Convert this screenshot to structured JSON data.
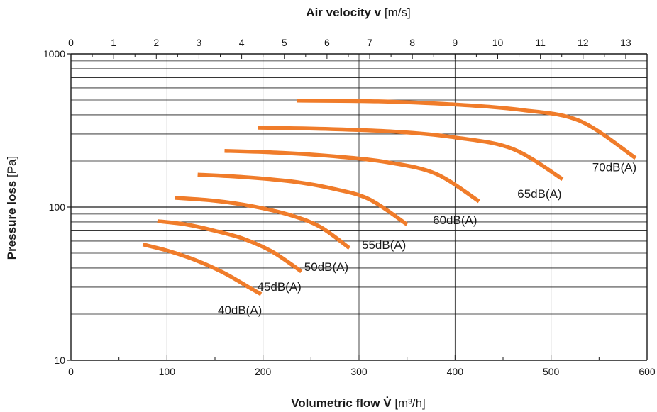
{
  "chart_data": {
    "type": "line",
    "x_axis": {
      "title_bold": "Volumetric flow V̇",
      "title_unit": "[m³/h]",
      "range": [
        0,
        600
      ],
      "ticks": [
        0,
        100,
        200,
        300,
        400,
        500,
        600
      ],
      "tick_labels": [
        "0",
        "100",
        "200",
        "300",
        "400",
        "500",
        "600"
      ],
      "minor_step": 50
    },
    "x2_axis": {
      "title_bold": "Air velocity v",
      "title_unit": "[m/s]",
      "range": [
        0,
        13.5
      ],
      "ticks": [
        0,
        1,
        2,
        3,
        4,
        5,
        6,
        7,
        8,
        9,
        10,
        11,
        12,
        13
      ],
      "tick_labels": [
        "0",
        "1",
        "2",
        "3",
        "4",
        "5",
        "6",
        "7",
        "8",
        "9",
        "10",
        "11",
        "12",
        "13"
      ],
      "minor_step": 0.5
    },
    "y_axis": {
      "title_bold": "Pressure loss",
      "title_unit": "[Pa]",
      "scale": "log",
      "range": [
        10,
        1000
      ],
      "ticks": [
        10,
        100,
        1000
      ],
      "tick_labels": [
        "10",
        "100",
        "1000"
      ]
    },
    "grid": true,
    "series_color": "#f07c2a",
    "series": [
      {
        "name": "40dB(A)",
        "label_anchor": [
          202,
          24
        ],
        "x": [
          75,
          100,
          130,
          160,
          185,
          198
        ],
        "y": [
          57,
          52,
          45,
          37,
          30,
          27
        ]
      },
      {
        "name": "45dB(A)",
        "label_anchor": [
          243,
          34
        ],
        "x": [
          90,
          120,
          150,
          180,
          210,
          240
        ],
        "y": [
          81,
          77,
          70,
          62,
          51,
          38
        ]
      },
      {
        "name": "50dB(A)",
        "label_anchor": [
          292,
          46
        ],
        "x": [
          108,
          150,
          190,
          230,
          260,
          290
        ],
        "y": [
          115,
          110,
          101,
          88,
          74,
          54
        ]
      },
      {
        "name": "55dB(A)",
        "label_anchor": [
          352,
          64
        ],
        "x": [
          132,
          180,
          230,
          270,
          310,
          350
        ],
        "y": [
          163,
          157,
          147,
          133,
          113,
          77
        ]
      },
      {
        "name": "60dB(A)",
        "label_anchor": [
          426,
          93
        ],
        "x": [
          160,
          220,
          280,
          330,
          380,
          425
        ],
        "y": [
          233,
          226,
          213,
          196,
          165,
          109
        ]
      },
      {
        "name": "65dB(A)",
        "label_anchor": [
          514,
          138
        ],
        "x": [
          195,
          270,
          340,
          400,
          460,
          512
        ],
        "y": [
          330,
          323,
          310,
          285,
          240,
          152
        ]
      },
      {
        "name": "70dB(A)",
        "label_anchor": [
          592,
          205
        ],
        "x": [
          235,
          320,
          400,
          470,
          530,
          588
        ],
        "y": [
          496,
          490,
          467,
          430,
          365,
          209
        ]
      }
    ]
  }
}
